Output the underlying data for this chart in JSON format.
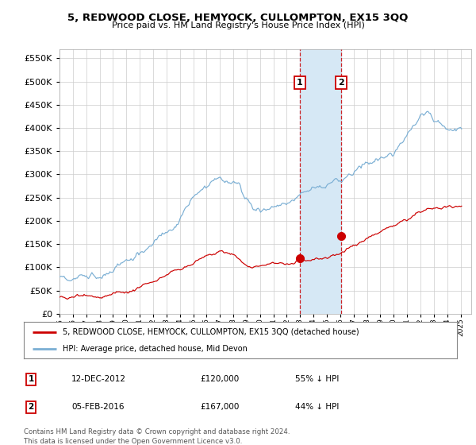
{
  "title": "5, REDWOOD CLOSE, HEMYOCK, CULLOMPTON, EX15 3QQ",
  "subtitle": "Price paid vs. HM Land Registry's House Price Index (HPI)",
  "ylim": [
    0,
    570000
  ],
  "yticks": [
    0,
    50000,
    100000,
    150000,
    200000,
    250000,
    300000,
    350000,
    400000,
    450000,
    500000,
    550000
  ],
  "hpi_color": "#7bafd4",
  "price_color": "#cc0000",
  "marker1_date_x": 2012.96,
  "marker1_price": 120000,
  "marker1_label": "1",
  "marker2_date_x": 2016.09,
  "marker2_price": 167000,
  "marker2_label": "2",
  "shade_color": "#d6e8f5",
  "legend_entries": [
    "5, REDWOOD CLOSE, HEMYOCK, CULLOMPTON, EX15 3QQ (detached house)",
    "HPI: Average price, detached house, Mid Devon"
  ],
  "annotation1": [
    "1",
    "12-DEC-2012",
    "£120,000",
    "55% ↓ HPI"
  ],
  "annotation2": [
    "2",
    "05-FEB-2016",
    "£167,000",
    "44% ↓ HPI"
  ],
  "footnote": "Contains HM Land Registry data © Crown copyright and database right 2024.\nThis data is licensed under the Open Government Licence v3.0.",
  "xmin": 1995.0,
  "xmax": 2025.8
}
